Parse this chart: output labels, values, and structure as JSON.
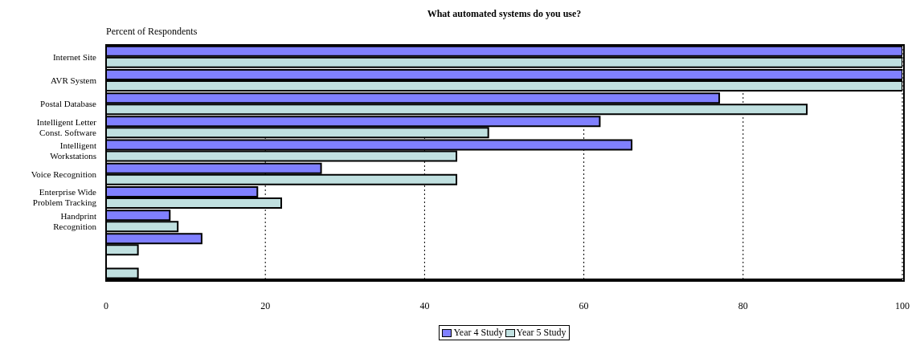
{
  "chart_data": {
    "type": "bar",
    "orientation": "horizontal",
    "title": "What automated systems do you use?",
    "xlabel": "Percent of Respondents",
    "categories": [
      "Internet Site",
      "AVR System",
      "Postal Database",
      "Intelligent Letter Const. Software",
      "Intelligent Workstations",
      "Voice Recognition",
      "Enterprise Wide Problem Tracking",
      "Handprint Recognition",
      null,
      null
    ],
    "series": [
      {
        "name": "Year 4 Study",
        "color": "#8080ff",
        "values": [
          100,
          100,
          77,
          62,
          66,
          27,
          19,
          8,
          12,
          0
        ]
      },
      {
        "name": "Year 5 Study",
        "color": "#c0e0e0",
        "values": [
          100,
          100,
          88,
          48,
          44,
          44,
          22,
          9,
          4,
          4
        ]
      }
    ],
    "xlim": [
      0,
      100
    ],
    "xticks": [
      0,
      20,
      40,
      60,
      80,
      100
    ],
    "grid": "x",
    "legend": "bottom"
  }
}
